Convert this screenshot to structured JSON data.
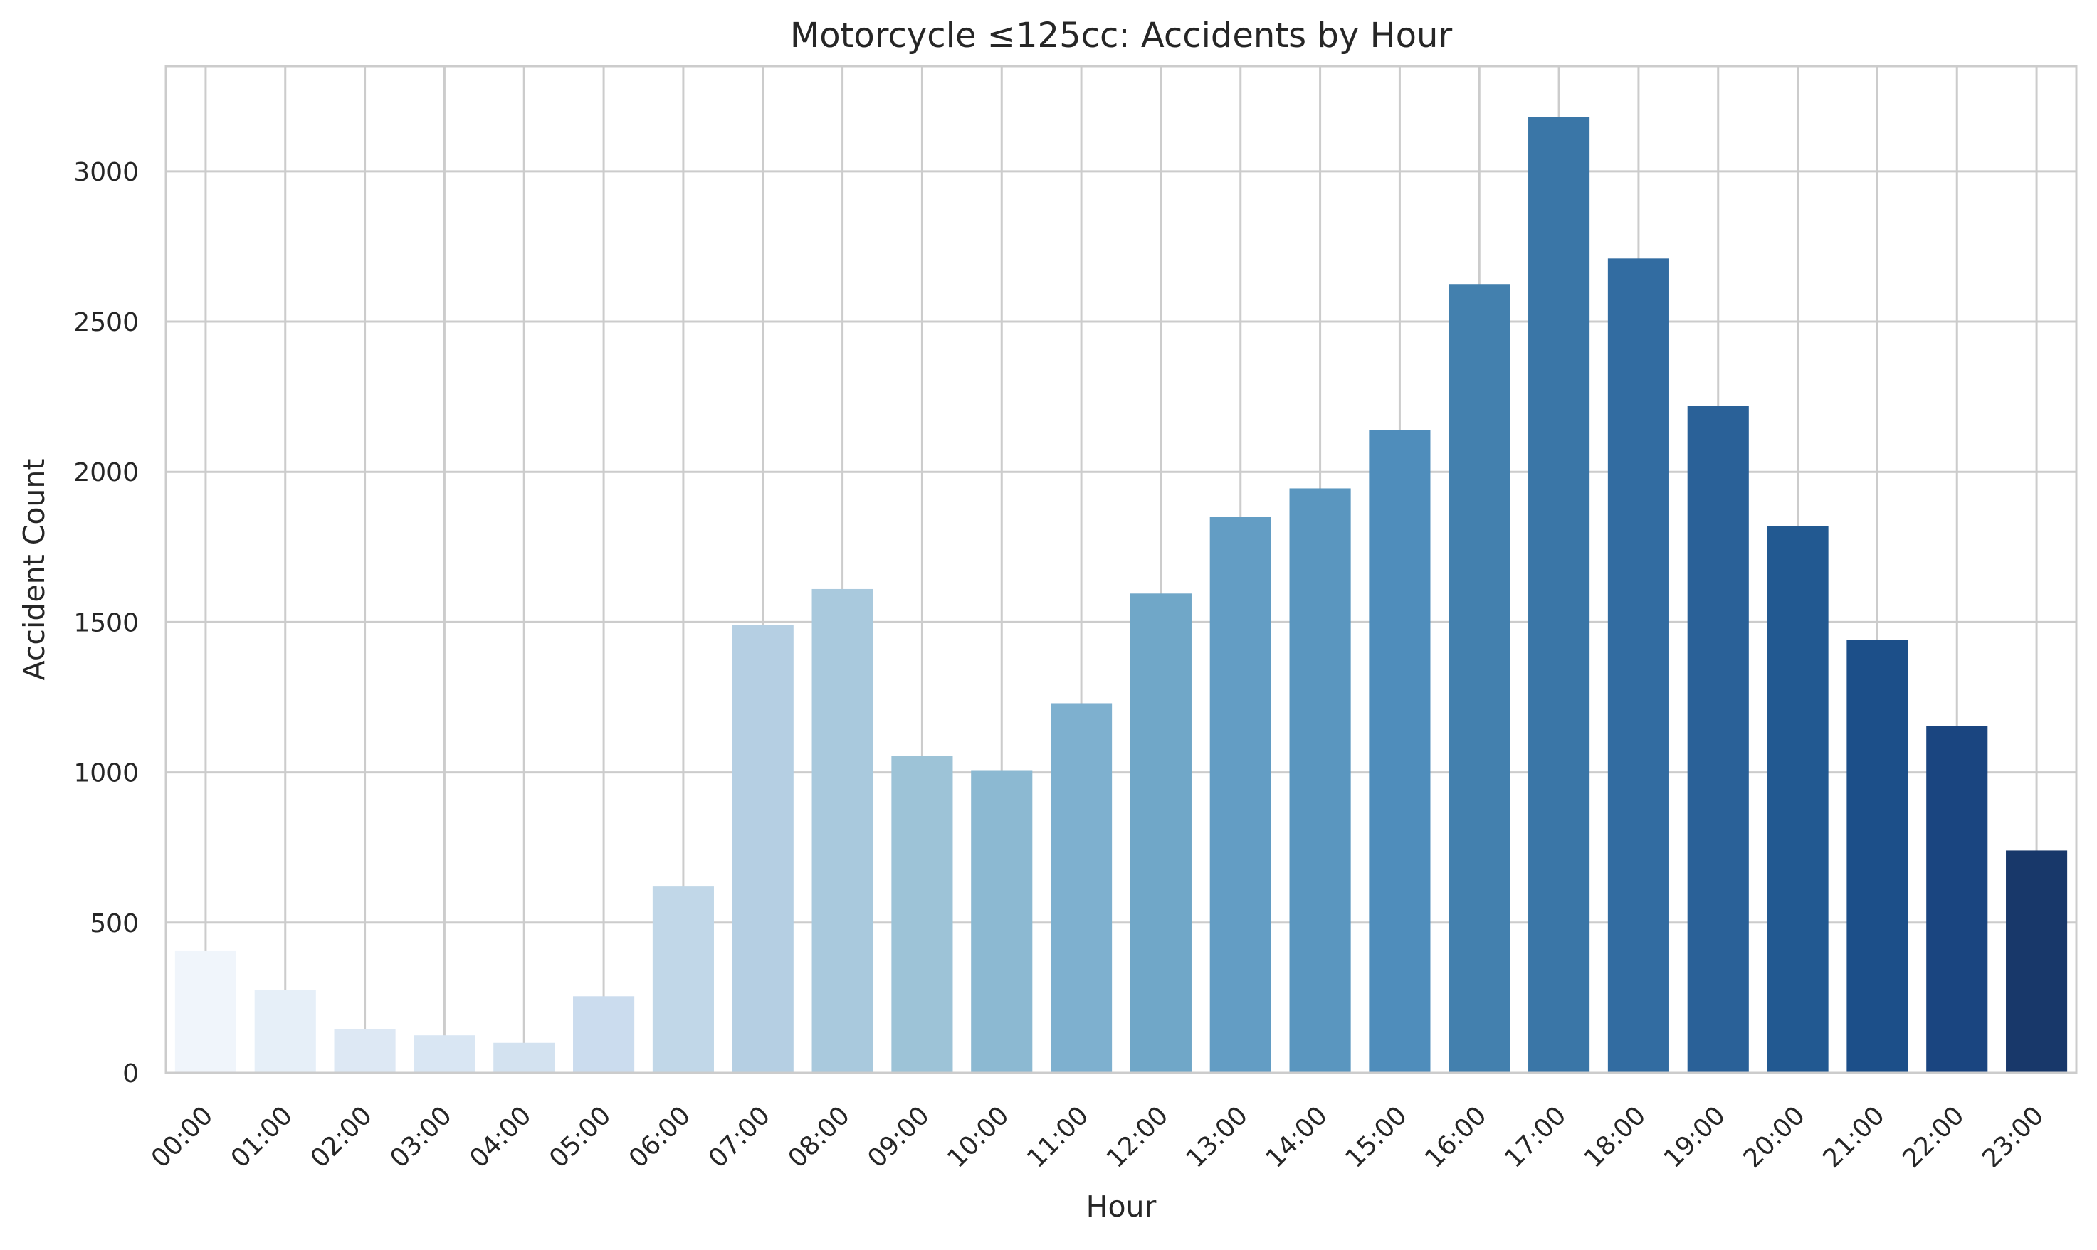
{
  "chart_data": {
    "type": "bar",
    "title": "Motorcycle ≤125cc: Accidents by Hour",
    "xlabel": "Hour",
    "ylabel": "Accident Count",
    "categories": [
      "00:00",
      "01:00",
      "02:00",
      "03:00",
      "04:00",
      "05:00",
      "06:00",
      "07:00",
      "08:00",
      "09:00",
      "10:00",
      "11:00",
      "12:00",
      "13:00",
      "14:00",
      "15:00",
      "16:00",
      "17:00",
      "18:00",
      "19:00",
      "20:00",
      "21:00",
      "22:00",
      "23:00"
    ],
    "values": [
      405,
      275,
      145,
      125,
      100,
      255,
      620,
      1490,
      1610,
      1055,
      1005,
      1230,
      1595,
      1850,
      1945,
      2140,
      2625,
      3180,
      2710,
      2220,
      1820,
      1440,
      1155,
      740
    ],
    "ylim": [
      0,
      3350
    ],
    "yticks": [
      0,
      500,
      1000,
      1500,
      2000,
      2500,
      3000
    ],
    "grid": true,
    "colors": [
      "#f0f5fb",
      "#e6eff8",
      "#dde8f4",
      "#d9e6f3",
      "#d3e2f0",
      "#cbdcee",
      "#c1d7e8",
      "#b5cfe3",
      "#a9c9dd",
      "#9dc3d7",
      "#8cb9d2",
      "#7eb0cf",
      "#70a7c8",
      "#639dc4",
      "#5a96bf",
      "#4f8dbb",
      "#4380ae",
      "#3a76a7",
      "#326ca1",
      "#2a6198",
      "#225991",
      "#1c4f89",
      "#1a4580",
      "#18386a"
    ]
  }
}
